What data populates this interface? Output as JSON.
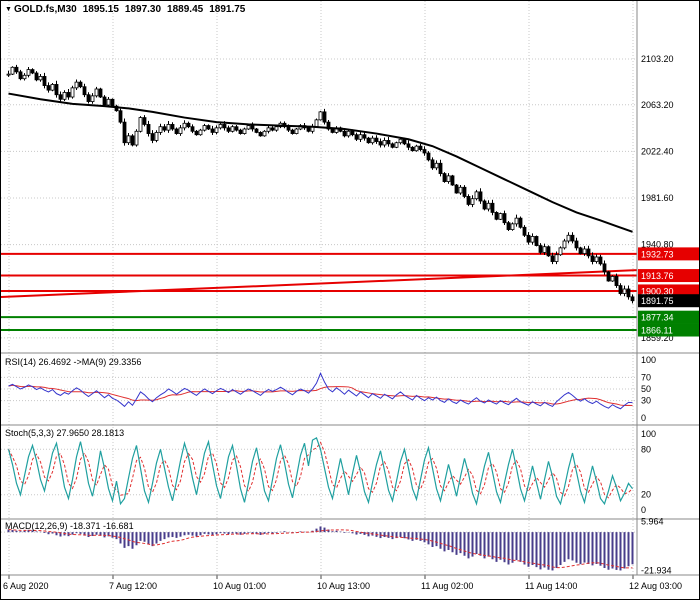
{
  "header": {
    "symbol": "GOLD.fs,M30",
    "open": "1895.15",
    "high": "1897.30",
    "low": "1889.45",
    "close": "1891.75"
  },
  "icons": {
    "symbol_marker": "▼"
  },
  "colors": {
    "background": "#ffffff",
    "grid": "#c8c8c8",
    "separator": "#888888",
    "axis_text": "#000000",
    "candle": "#000000",
    "ma": "#000000",
    "resistance": "#e60000",
    "support": "#008000",
    "current_price_badge": "#000000",
    "rsi_line": "#3535cc",
    "stoch_line": "#20a0a0",
    "signal_line": "#e03030",
    "macd_bar": "#483d8b"
  },
  "chart_data": {
    "type": "candlestick",
    "title": "GOLD.fs,M30",
    "symbol": "GOLD.fs",
    "timeframe": "M30",
    "last_ohlc": {
      "open": 1895.15,
      "high": 1897.3,
      "low": 1889.45,
      "close": 1891.75
    },
    "y_ticks": [
      {
        "v": 2103.2,
        "t": "2103.20"
      },
      {
        "v": 2063.2,
        "t": "2063.20"
      },
      {
        "v": 2022.4,
        "t": "2022.40"
      },
      {
        "v": 1981.6,
        "t": "1981.60"
      },
      {
        "v": 1940.8,
        "t": "1940.80"
      },
      {
        "v": 1859.2,
        "t": "1859.20"
      }
    ],
    "price_range": [
      1846,
      2154
    ],
    "price_lines": [
      {
        "price": 1932.73,
        "label": "1932.73",
        "color": "#e60000",
        "badge": "#e60000",
        "width": 2
      },
      {
        "price": 1913.76,
        "label": "1913.76",
        "color": "#e60000",
        "badge": "#e60000",
        "width": 2
      },
      {
        "price": 1900.3,
        "label": "1900.30",
        "color": "#e60000",
        "badge": "#e60000",
        "width": 2
      },
      {
        "price": 1891.75,
        "label": "1891.75",
        "color": null,
        "badge": "#000000",
        "width": 0
      },
      {
        "price": 1877.34,
        "label": "1877.34",
        "color": "#008000",
        "badge": "#008000",
        "width": 2
      },
      {
        "price": 1866.11,
        "label": "1866.11",
        "color": "#008000",
        "badge": "#008000",
        "width": 2
      }
    ],
    "trendline": {
      "price1": 1895.0,
      "price2": 1918.5,
      "color": "#e60000",
      "width": 2
    },
    "ma_points": [
      [
        0,
        2073
      ],
      [
        8,
        2068
      ],
      [
        16,
        2064
      ],
      [
        24,
        2062
      ],
      [
        30,
        2060
      ],
      [
        36,
        2057
      ],
      [
        44,
        2052
      ],
      [
        52,
        2048
      ],
      [
        60,
        2046
      ],
      [
        68,
        2045
      ],
      [
        76,
        2044
      ],
      [
        84,
        2042
      ],
      [
        92,
        2038
      ],
      [
        100,
        2033
      ],
      [
        106,
        2027
      ],
      [
        112,
        2018
      ],
      [
        118,
        2008
      ],
      [
        124,
        1998
      ],
      [
        130,
        1988
      ],
      [
        136,
        1978
      ],
      [
        142,
        1969
      ],
      [
        148,
        1962
      ],
      [
        152,
        1957
      ],
      [
        156,
        1952
      ]
    ],
    "closes": [
      2090,
      2096,
      2092,
      2086,
      2089,
      2094,
      2091,
      2085,
      2088,
      2080,
      2076,
      2081,
      2072,
      2068,
      2074,
      2070,
      2078,
      2083,
      2079,
      2072,
      2066,
      2071,
      2077,
      2070,
      2063,
      2068,
      2062,
      2058,
      2048,
      2030,
      2036,
      2028,
      2040,
      2052,
      2046,
      2038,
      2032,
      2039,
      2044,
      2041,
      2046,
      2042,
      2038,
      2043,
      2047,
      2044,
      2040,
      2037,
      2041,
      2045,
      2042,
      2039,
      2043,
      2046,
      2043,
      2040,
      2044,
      2041,
      2038,
      2042,
      2045,
      2042,
      2039,
      2036,
      2040,
      2043,
      2041,
      2044,
      2047,
      2044,
      2041,
      2038,
      2042,
      2045,
      2043,
      2040,
      2044,
      2050,
      2057,
      2048,
      2042,
      2039,
      2043,
      2040,
      2036,
      2040,
      2037,
      2033,
      2037,
      2034,
      2030,
      2034,
      2031,
      2028,
      2032,
      2029,
      2026,
      2030,
      2033,
      2029,
      2026,
      2023,
      2027,
      2024,
      2021,
      2015,
      2008,
      2012,
      2003,
      1996,
      2001,
      1993,
      1986,
      1991,
      1983,
      1976,
      1981,
      1987,
      1979,
      1972,
      1977,
      1969,
      1963,
      1968,
      1960,
      1954,
      1959,
      1964,
      1956,
      1949,
      1943,
      1948,
      1940,
      1934,
      1939,
      1931,
      1926,
      1932,
      1938,
      1944,
      1949,
      1944,
      1938,
      1933,
      1937,
      1931,
      1926,
      1930,
      1924,
      1917,
      1909,
      1913,
      1905,
      1898,
      1902,
      1895.15,
      1891.75
    ],
    "x_axis": {
      "labels": [
        "6 Aug 2020",
        "7 Aug 12:00",
        "10 Aug 01:00",
        "10 Aug 13:00",
        "11 Aug 02:00",
        "11 Aug 14:00",
        "12 Aug 03:00"
      ],
      "tick_x": [
        8,
        112,
        216,
        320,
        424,
        528,
        632
      ]
    },
    "indicators": {
      "rsi": {
        "label": "RSI(14) 26.4692  ->MA(9) 29.3356",
        "ticks": [
          100,
          70,
          50,
          30,
          0
        ],
        "levels": [
          70,
          50,
          30
        ],
        "values": [
          55,
          58,
          54,
          50,
          53,
          57,
          54,
          49,
          52,
          48,
          45,
          49,
          42,
          39,
          44,
          41,
          47,
          52,
          48,
          42,
          37,
          42,
          47,
          41,
          35,
          40,
          34,
          31,
          26,
          20,
          28,
          22,
          33,
          45,
          40,
          33,
          28,
          35,
          40,
          44,
          50,
          46,
          41,
          46,
          51,
          48,
          43,
          39,
          45,
          50,
          46,
          42,
          47,
          51,
          48,
          44,
          49,
          45,
          41,
          46,
          50,
          47,
          43,
          39,
          45,
          49,
          46,
          49,
          53,
          49,
          44,
          40,
          46,
          50,
          47,
          43,
          50,
          60,
          77,
          62,
          50,
          45,
          52,
          47,
          41,
          48,
          43,
          38,
          45,
          40,
          35,
          42,
          38,
          34,
          41,
          37,
          33,
          40,
          45,
          39,
          35,
          31,
          39,
          34,
          30,
          35,
          31,
          36,
          30,
          27,
          33,
          28,
          25,
          31,
          27,
          24,
          30,
          35,
          29,
          26,
          31,
          27,
          24,
          30,
          26,
          23,
          29,
          34,
          28,
          25,
          22,
          28,
          24,
          21,
          27,
          23,
          20,
          28,
          34,
          40,
          44,
          39,
          33,
          29,
          33,
          28,
          25,
          29,
          24,
          20,
          17,
          23,
          19,
          16,
          22,
          27,
          26.47
        ]
      },
      "stoch": {
        "label": "Stoch(5,3,3) 27.9650 28.1813",
        "ticks": [
          100,
          80,
          20,
          0
        ],
        "levels": [
          80,
          20
        ],
        "values": [
          80,
          60,
          35,
          20,
          45,
          70,
          85,
          65,
          40,
          25,
          50,
          75,
          88,
          60,
          30,
          15,
          40,
          70,
          90,
          65,
          35,
          18,
          45,
          78,
          55,
          28,
          12,
          38,
          8,
          15,
          42,
          68,
          85,
          55,
          25,
          10,
          35,
          62,
          80,
          55,
          30,
          12,
          38,
          65,
          88,
          70,
          42,
          20,
          48,
          75,
          90,
          60,
          32,
          15,
          42,
          70,
          85,
          58,
          28,
          10,
          36,
          64,
          82,
          55,
          25,
          12,
          40,
          68,
          86,
          62,
          34,
          16,
          44,
          72,
          88,
          58,
          92,
          95,
          80,
          55,
          30,
          15,
          42,
          68,
          45,
          20,
          48,
          72,
          50,
          24,
          10,
          36,
          60,
          78,
          52,
          26,
          12,
          38,
          64,
          80,
          55,
          28,
          14,
          40,
          66,
          82,
          55,
          28,
          12,
          36,
          60,
          40,
          18,
          44,
          68,
          48,
          22,
          8,
          34,
          58,
          76,
          50,
          24,
          10,
          36,
          60,
          80,
          55,
          28,
          12,
          34,
          58,
          36,
          14,
          40,
          64,
          44,
          18,
          8,
          30,
          55,
          75,
          50,
          25,
          10,
          35,
          58,
          38,
          15,
          8,
          25,
          45,
          30,
          12,
          22,
          35,
          27.97
        ]
      },
      "macd": {
        "label": "MACD(12,26,9) -18.371 -16.681",
        "ticks": [
          {
            "v": 5.964,
            "t": "5.964"
          },
          {
            "v": -21.934,
            "t": "-21.934"
          }
        ],
        "levels": [
          0
        ],
        "values": [
          1.5,
          1.2,
          0.8,
          0.5,
          0.9,
          1.3,
          1.0,
          0.4,
          0.2,
          -0.5,
          -1.2,
          -0.8,
          -1.8,
          -2.5,
          -1.9,
          -2.3,
          -1.4,
          -0.6,
          -1.0,
          -2.0,
          -2.8,
          -2.2,
          -1.5,
          -2.1,
          -3.0,
          -2.4,
          -3.2,
          -4.0,
          -6.5,
          -9.0,
          -8.0,
          -9.5,
          -7.5,
          -5.0,
          -5.5,
          -7.0,
          -8.0,
          -6.5,
          -5.0,
          -4.0,
          -3.0,
          -2.8,
          -3.3,
          -2.6,
          -1.8,
          -1.5,
          -2.0,
          -2.5,
          -1.8,
          -1.0,
          -1.3,
          -1.8,
          -1.2,
          -0.6,
          -0.8,
          -1.2,
          -0.7,
          -1.0,
          -1.5,
          -1.0,
          -0.4,
          -0.7,
          -1.1,
          -1.6,
          -1.0,
          -0.5,
          -0.8,
          -0.4,
          0.2,
          0.5,
          0.1,
          -0.4,
          -0.1,
          0.4,
          0.2,
          -0.2,
          0.8,
          2.0,
          3.2,
          2.6,
          1.5,
          0.5,
          0.8,
          0.3,
          -0.4,
          -0.2,
          -0.7,
          -1.4,
          -1.0,
          -1.6,
          -2.4,
          -2.0,
          -2.7,
          -3.4,
          -2.8,
          -3.3,
          -4.0,
          -3.4,
          -2.8,
          -3.5,
          -4.2,
          -5.0,
          -4.4,
          -5.0,
          -5.8,
          -7.0,
          -8.5,
          -8.0,
          -9.5,
          -11.0,
          -10.2,
          -11.5,
          -13.0,
          -12.0,
          -13.5,
          -15.0,
          -14.0,
          -12.5,
          -13.5,
          -15.0,
          -14.0,
          -15.5,
          -17.0,
          -15.8,
          -17.2,
          -18.5,
          -17.5,
          -16.0,
          -17.0,
          -18.5,
          -19.8,
          -18.8,
          -20.0,
          -21.3,
          -20.2,
          -21.5,
          -21.9,
          -20.5,
          -18.8,
          -17.0,
          -15.5,
          -16.2,
          -17.5,
          -18.3,
          -17.4,
          -18.2,
          -19.0,
          -18.2,
          -19.2,
          -20.5,
          -21.5,
          -20.8,
          -21.6,
          -21.9,
          -20.8,
          -19.5,
          -18.371
        ]
      }
    }
  }
}
